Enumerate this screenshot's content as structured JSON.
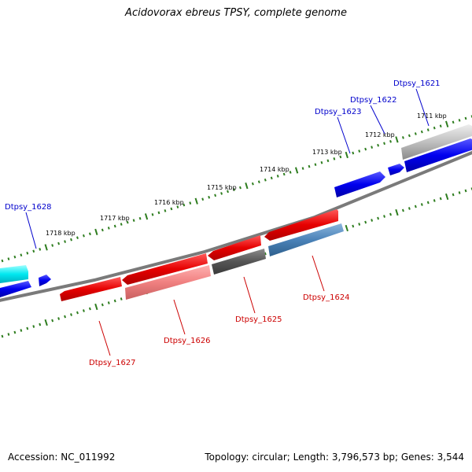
{
  "title": "Acidovorax ebreus TPSY, complete genome",
  "footer": {
    "accession": "Accession: NC_011992",
    "summary": "Topology: circular; Length: 3,796,573 bp; Genes: 3,544"
  },
  "colors": {
    "forward_label": "#0000cc",
    "reverse_label": "#cc0000",
    "tick": "#2e7d1f",
    "backbone": "#7a7a7a"
  },
  "scale_labels": [
    "1711 kbp",
    "1712 kbp",
    "1713 kbp",
    "1714 kbp",
    "1715 kbp",
    "1716 kbp",
    "1717 kbp",
    "1718 kbp"
  ],
  "forward_labels": [
    "Dtpsy_1621",
    "Dtpsy_1622",
    "Dtpsy_1623",
    "Dtpsy_1628"
  ],
  "reverse_labels": [
    "Dtpsy_1624",
    "Dtpsy_1625",
    "Dtpsy_1626",
    "Dtpsy_1627"
  ]
}
